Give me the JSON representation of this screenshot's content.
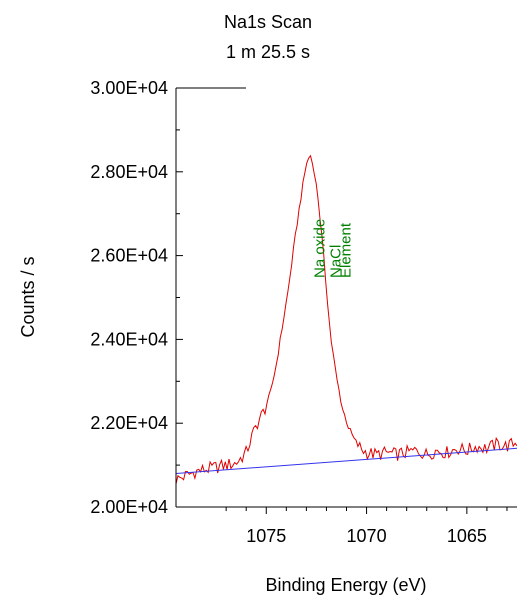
{
  "chart_data": {
    "type": "line",
    "title": "Na1s Scan",
    "subtitle": "1 m 25.5 s",
    "xlabel": "Binding Energy (eV)",
    "ylabel": "Counts / s",
    "x_reversed": true,
    "xlim": [
      1079.5,
      1062.5
    ],
    "ylim": [
      20000,
      30000
    ],
    "xticks": [
      {
        "value": 1075,
        "label": "1075"
      },
      {
        "value": 1070,
        "label": "1070"
      },
      {
        "value": 1065,
        "label": "1065"
      }
    ],
    "yticks": [
      {
        "value": 20000,
        "label": "2.00E+04"
      },
      {
        "value": 22000,
        "label": "2.20E+04"
      },
      {
        "value": 24000,
        "label": "2.40E+04"
      },
      {
        "value": 26000,
        "label": "2.60E+04"
      },
      {
        "value": 28000,
        "label": "2.80E+04"
      },
      {
        "value": 30000,
        "label": "3.00E+04"
      }
    ],
    "grid": false,
    "series": [
      {
        "color": "#e00000",
        "x": [
          1079.5,
          1079.0,
          1078.5,
          1078.0,
          1077.5,
          1077.0,
          1076.5,
          1076.0,
          1075.7,
          1075.4,
          1075.1,
          1074.8,
          1074.5,
          1074.2,
          1073.9,
          1073.6,
          1073.3,
          1073.0,
          1072.8,
          1072.6,
          1072.4,
          1072.2,
          1072.0,
          1071.8,
          1071.5,
          1071.2,
          1070.9,
          1070.6,
          1070.3,
          1070.0,
          1069.5,
          1069.0,
          1068.5,
          1068.0,
          1067.5,
          1067.0,
          1066.5,
          1066.0,
          1065.5,
          1065.0,
          1064.5,
          1064.0,
          1063.5,
          1063.0,
          1062.5
        ],
        "y": [
          20650,
          20750,
          20850,
          20900,
          20950,
          21000,
          21050,
          21300,
          21700,
          22050,
          22300,
          22700,
          23400,
          24300,
          25200,
          26300,
          27300,
          28200,
          28400,
          28000,
          27300,
          26300,
          25200,
          24100,
          23100,
          22350,
          21900,
          21600,
          21400,
          21300,
          21250,
          21300,
          21250,
          21300,
          21350,
          21250,
          21350,
          21300,
          21400,
          21350,
          21450,
          21400,
          21500,
          21450,
          21550
        ]
      },
      {
        "color": "#3333ee",
        "x": [
          1079.5,
          1062.5
        ],
        "y": [
          20800,
          21400
        ]
      }
    ],
    "annotations": [
      {
        "text": "Na oxide",
        "x": 1072.3,
        "color": "#008000"
      },
      {
        "text": "NaCl",
        "x": 1071.5,
        "color": "#008000"
      },
      {
        "text": "Element",
        "x": 1071.0,
        "color": "#008000"
      }
    ]
  }
}
